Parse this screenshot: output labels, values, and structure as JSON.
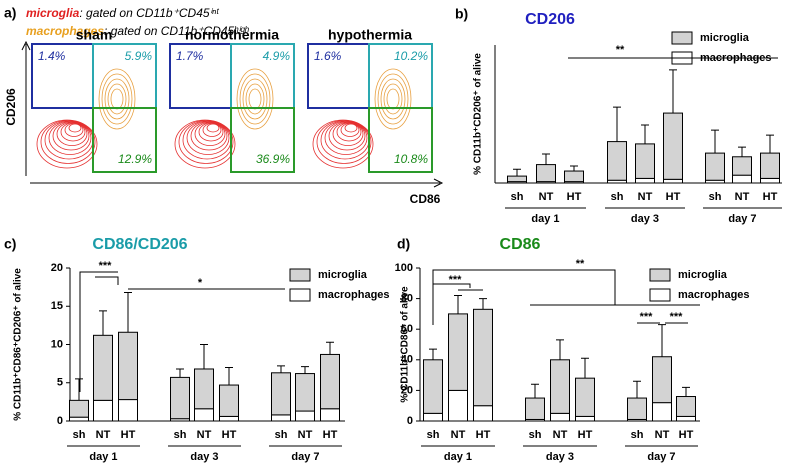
{
  "flow_panel": {
    "label": "a)",
    "gate_lines": [
      {
        "cell": "microglia",
        "text": ": gated on CD11b⁺CD45ⁱⁿᵗ"
      },
      {
        "cell": "macrophages",
        "text": ": gated on CD11b⁺CD45ʰⁱᵍʰ"
      }
    ],
    "plots": [
      {
        "title": "sham",
        "upper_left": "1.4%",
        "upper_right": "5.9%",
        "lower_right": "12.9%"
      },
      {
        "title": "normothermia",
        "upper_left": "1.7%",
        "upper_right": "4.9%",
        "lower_right": "36.9%"
      },
      {
        "title": "hypothermia",
        "upper_left": "1.6%",
        "upper_right": "10.2%",
        "lower_right": "10.8%"
      }
    ],
    "xlabel": "CD86",
    "ylabel": "CD206"
  },
  "chart_data": [
    {
      "type": "bar",
      "stacked": true,
      "label": "b)",
      "title": "CD206",
      "title_color": "#1f1fbf",
      "ylabel": "% CD11b⁺CD206⁺ of alive",
      "categories": [
        "sh",
        "NT",
        "HT",
        "sh",
        "NT",
        "HT",
        "sh",
        "NT",
        "HT"
      ],
      "groups": [
        "day 1",
        "day 3",
        "day 7"
      ],
      "ylim": [
        0,
        3
      ],
      "series": [
        {
          "name": "macrophages",
          "color": "#ffffff",
          "values": [
            0.03,
            0.03,
            0.03,
            0.06,
            0.1,
            0.08,
            0.06,
            0.17,
            0.1
          ],
          "errors": [
            0.02,
            0.02,
            0.02,
            0.04,
            0.05,
            0.04,
            0.03,
            0.2,
            0.05
          ]
        },
        {
          "name": "microglia",
          "color": "#d3d3d3",
          "values": [
            0.12,
            0.37,
            0.23,
            0.84,
            0.75,
            1.44,
            0.59,
            0.4,
            0.55
          ],
          "errors": [
            0.15,
            0.23,
            0.11,
            0.75,
            0.41,
            0.94,
            0.5,
            0.21,
            0.39
          ]
        }
      ],
      "annotations": [
        "**"
      ]
    },
    {
      "type": "bar",
      "stacked": true,
      "label": "c)",
      "title": "CD86/CD206",
      "title_color": "#1a9ca8",
      "ylabel": "% CD11b⁺CD86⁺CD206⁺ of alive",
      "categories": [
        "sh",
        "NT",
        "HT",
        "sh",
        "NT",
        "HT",
        "sh",
        "NT",
        "HT"
      ],
      "groups": [
        "day 1",
        "day 3",
        "day 7"
      ],
      "ylim": [
        0,
        20
      ],
      "yticks": [
        0,
        5,
        10,
        15,
        20
      ],
      "series": [
        {
          "name": "macrophages",
          "color": "#ffffff",
          "values": [
            0.5,
            2.7,
            2.8,
            0.3,
            1.6,
            0.6,
            0.8,
            1.3,
            1.6
          ],
          "errors": [
            0.3,
            1.3,
            2.2,
            0.2,
            1.4,
            0.4,
            0.4,
            1.2,
            0.6
          ]
        },
        {
          "name": "microglia",
          "color": "#d3d3d3",
          "values": [
            2.2,
            8.5,
            8.8,
            5.4,
            5.2,
            4.1,
            5.5,
            4.9,
            7.1
          ],
          "errors": [
            2.8,
            3.2,
            5.2,
            1.1,
            3.2,
            2.3,
            0.9,
            0.9,
            1.6
          ]
        }
      ],
      "annotations": [
        "***",
        "*"
      ]
    },
    {
      "type": "bar",
      "stacked": true,
      "label": "d)",
      "title": "CD86",
      "title_color": "#1a8a1a",
      "ylabel": "% CD11b⁺CD86⁺ of alive",
      "categories": [
        "sh",
        "NT",
        "HT",
        "sh",
        "NT",
        "HT",
        "sh",
        "NT",
        "HT"
      ],
      "groups": [
        "day 1",
        "day 3",
        "day 7"
      ],
      "ylim": [
        0,
        100
      ],
      "yticks": [
        0,
        20,
        40,
        60,
        80,
        100
      ],
      "series": [
        {
          "name": "macrophages",
          "color": "#ffffff",
          "values": [
            5,
            20,
            10,
            1,
            5,
            3,
            1,
            12,
            3
          ],
          "errors": [
            3,
            8,
            6,
            1,
            3,
            1,
            1,
            12,
            1
          ]
        },
        {
          "name": "microglia",
          "color": "#d3d3d3",
          "values": [
            35,
            50,
            63,
            14,
            35,
            25,
            14,
            30,
            13
          ],
          "errors": [
            7,
            12,
            7,
            9,
            13,
            13,
            11,
            21,
            6
          ]
        }
      ],
      "annotations": [
        "**",
        "***",
        "***",
        "***"
      ]
    }
  ]
}
